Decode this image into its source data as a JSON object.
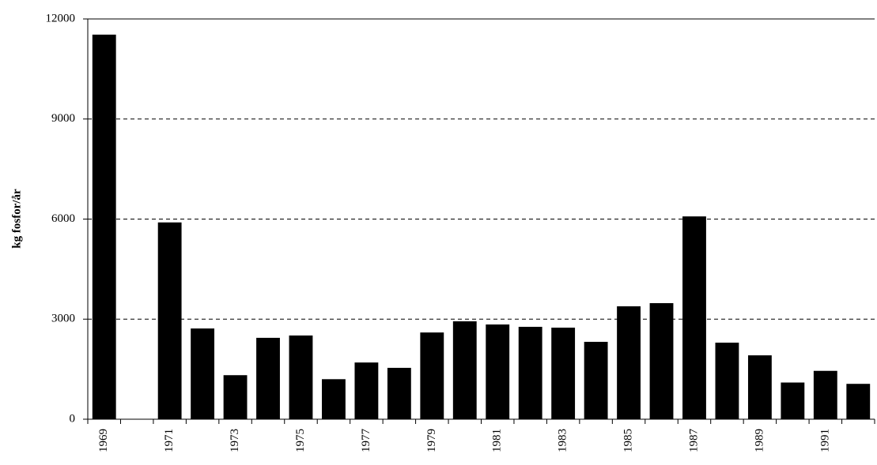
{
  "chart_data": {
    "type": "bar",
    "y_label": "kg fosfor/år",
    "categories": [
      "1969",
      null,
      "1971",
      null,
      "1973",
      null,
      "1975",
      null,
      "1977",
      null,
      "1979",
      null,
      "1981",
      null,
      "1983",
      null,
      "1985",
      null,
      "1987",
      null,
      "1989",
      null,
      "1991",
      null
    ],
    "values": [
      11530,
      0,
      5900,
      2720,
      1320,
      2440,
      2510,
      1200,
      1700,
      1540,
      2600,
      2935,
      2840,
      2770,
      2745,
      2320,
      3385,
      3480,
      6080,
      2295,
      1915,
      1100,
      1450,
      1060
    ],
    "color": "#000000",
    "ylim": [
      0,
      12000
    ],
    "yticks": [
      0,
      3000,
      6000,
      9000,
      12000
    ],
    "grid": true
  }
}
